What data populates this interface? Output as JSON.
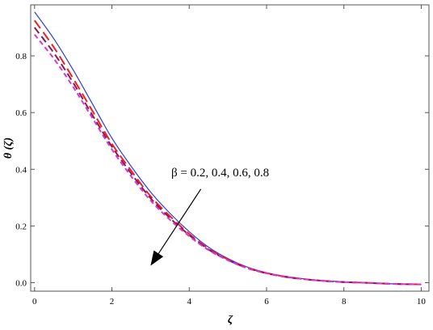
{
  "chart_data": {
    "type": "line",
    "title": "",
    "xlabel": "ζ",
    "ylabel": "θ (ζ)",
    "xlim": [
      -0.1,
      10.2
    ],
    "ylim": [
      -0.03,
      0.98
    ],
    "xticks": [
      0,
      2,
      4,
      6,
      8,
      10
    ],
    "yticks": [
      0.0,
      0.2,
      0.4,
      0.6,
      0.8
    ],
    "xtick_labels": [
      "0",
      "2",
      "4",
      "6",
      "8",
      "10"
    ],
    "ytick_labels": [
      "0.0",
      "0.2",
      "0.4",
      "0.6",
      "0.8"
    ],
    "grid": false,
    "annotation": {
      "text": "β = 0.2, 0.4, 0.6, 0.8",
      "arrow_from": [
        4.3,
        0.33
      ],
      "arrow_to": [
        3.0,
        0.06
      ]
    },
    "series": [
      {
        "color": "#2b3de0",
        "dash": "solid",
        "x": [
          0,
          0.5,
          1,
          1.5,
          2,
          2.5,
          3,
          3.5,
          4,
          4.5,
          5,
          5.5,
          6,
          6.5,
          7,
          7.5,
          8,
          8.5,
          9,
          9.5,
          10
        ],
        "y": [
          0.955,
          0.86,
          0.75,
          0.63,
          0.51,
          0.41,
          0.32,
          0.245,
          0.18,
          0.125,
          0.085,
          0.055,
          0.035,
          0.022,
          0.013,
          0.007,
          0.003,
          0.0,
          -0.003,
          -0.005,
          -0.006
        ]
      },
      {
        "color": "#e8231f",
        "dash": "12,6",
        "x": [
          0,
          0.5,
          1,
          1.5,
          2,
          2.5,
          3,
          3.5,
          4,
          4.5,
          5,
          5.5,
          6,
          6.5,
          7,
          7.5,
          8,
          8.5,
          9,
          9.5,
          10
        ],
        "y": [
          0.925,
          0.83,
          0.72,
          0.605,
          0.49,
          0.395,
          0.305,
          0.235,
          0.172,
          0.12,
          0.082,
          0.053,
          0.034,
          0.021,
          0.012,
          0.006,
          0.002,
          0.0,
          -0.003,
          -0.005,
          -0.006
        ]
      },
      {
        "color": "#8b1a4a",
        "dash": "9,5",
        "x": [
          0,
          0.5,
          1,
          1.5,
          2,
          2.5,
          3,
          3.5,
          4,
          4.5,
          5,
          5.5,
          6,
          6.5,
          7,
          7.5,
          8,
          8.5,
          9,
          9.5,
          10
        ],
        "y": [
          0.9,
          0.81,
          0.705,
          0.59,
          0.48,
          0.385,
          0.298,
          0.228,
          0.168,
          0.117,
          0.08,
          0.052,
          0.033,
          0.02,
          0.012,
          0.006,
          0.002,
          0.0,
          -0.003,
          -0.005,
          -0.006
        ]
      },
      {
        "color": "#e030d8",
        "dash": "6,4",
        "x": [
          0,
          0.5,
          1,
          1.5,
          2,
          2.5,
          3,
          3.5,
          4,
          4.5,
          5,
          5.5,
          6,
          6.5,
          7,
          7.5,
          8,
          8.5,
          9,
          9.5,
          10
        ],
        "y": [
          0.875,
          0.79,
          0.69,
          0.58,
          0.47,
          0.375,
          0.29,
          0.222,
          0.164,
          0.115,
          0.079,
          0.051,
          0.033,
          0.02,
          0.012,
          0.006,
          0.002,
          0.0,
          -0.003,
          -0.005,
          -0.006
        ]
      }
    ]
  }
}
